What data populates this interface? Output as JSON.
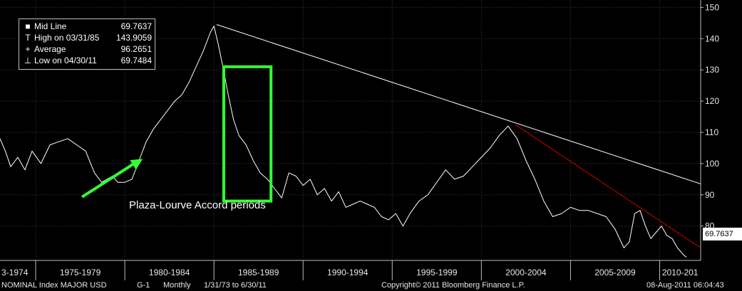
{
  "legend": {
    "rows": [
      {
        "symbol": "■",
        "label": "Mid Line",
        "value": "69.7637"
      },
      {
        "symbol": "T",
        "label": "High on 03/31/85",
        "value": "143.9059"
      },
      {
        "symbol": "+",
        "label": "Average",
        "value": "96.2651"
      },
      {
        "symbol": "⊥",
        "label": "Low on 04/30/11",
        "value": "69.7484"
      }
    ]
  },
  "annotation_text": "Plaza-Lourve Accord periods",
  "last_price_label": "69.7637",
  "footer": {
    "index": "NOMINAL Index  MAJOR USD",
    "chart_id": "G-1",
    "frequency": "Monthly",
    "range": "1/31/73 to 6/30/11",
    "copyright": "Copyright© 2011 Bloomberg Finance L.P.",
    "timestamp": "08-Aug-2011 06:04:43"
  },
  "colors": {
    "background": "#000000",
    "series": "#ffffff",
    "trend_white": "#ffffff",
    "trend_red": "#cc0000",
    "highlight_box": "#33ff33",
    "arrow": "#33ff33",
    "grid": "#3a3a3a"
  },
  "chart_data": {
    "type": "line",
    "title": "",
    "xlabel": "",
    "ylabel": "",
    "ylim": [
      69,
      151
    ],
    "xlim": [
      1973.0,
      2012.3
    ],
    "y_ticks": [
      80,
      90,
      100,
      110,
      120,
      130,
      140,
      150
    ],
    "x_period_labels": [
      "3-1974",
      "1975-1979",
      "1980-1984",
      "1985-1989",
      "1990-1994",
      "1995-1999",
      "2000-2004",
      "2005-2009",
      "2010-201"
    ],
    "x_period_dividers": [
      1975.0,
      1980.0,
      1985.0,
      1990.0,
      1995.0,
      2000.0,
      2005.0,
      2010.0
    ],
    "grid": true,
    "legend_position": "top-left",
    "series": [
      {
        "name": "Mid Line",
        "x": [
          1973.0,
          1973.3,
          1973.6,
          1974.0,
          1974.4,
          1974.8,
          1975.3,
          1975.8,
          1976.3,
          1976.8,
          1977.3,
          1977.8,
          1978.3,
          1978.7,
          1979.0,
          1979.3,
          1979.6,
          1980.0,
          1980.4,
          1980.8,
          1981.2,
          1981.6,
          1982.0,
          1982.4,
          1982.8,
          1983.2,
          1983.6,
          1984.0,
          1984.4,
          1984.8,
          1985.0,
          1985.25,
          1985.5,
          1985.8,
          1986.1,
          1986.4,
          1986.8,
          1987.2,
          1987.6,
          1988.0,
          1988.4,
          1988.8,
          1989.2,
          1989.6,
          1990.0,
          1990.4,
          1990.8,
          1991.2,
          1991.6,
          1992.0,
          1992.4,
          1992.8,
          1993.2,
          1993.6,
          1994.0,
          1994.4,
          1994.8,
          1995.2,
          1995.6,
          1996.0,
          1996.5,
          1997.0,
          1997.5,
          1998.0,
          1998.5,
          1999.0,
          1999.5,
          2000.0,
          2000.5,
          2001.0,
          2001.5,
          2002.0,
          2002.5,
          2003.0,
          2003.5,
          2004.0,
          2004.5,
          2005.0,
          2005.5,
          2006.0,
          2006.5,
          2007.0,
          2007.5,
          2008.0,
          2008.3,
          2008.6,
          2008.9,
          2009.2,
          2009.5,
          2009.8,
          2010.1,
          2010.4,
          2010.7,
          2011.0,
          2011.3,
          2011.5
        ],
        "values": [
          108,
          104,
          99,
          102,
          98,
          104,
          100,
          106,
          107,
          108,
          106,
          104,
          97,
          94,
          95,
          96,
          94,
          94,
          95,
          101,
          107,
          111,
          114,
          117,
          120,
          122,
          126,
          131,
          136,
          142,
          144,
          138,
          131,
          122,
          114,
          109,
          106,
          101,
          97,
          95,
          92,
          89,
          97,
          96,
          93,
          95,
          90,
          92,
          88,
          91,
          86,
          87,
          88,
          87,
          86,
          83,
          82,
          84,
          80,
          84,
          88,
          90,
          94,
          98,
          95,
          96,
          99,
          102,
          105,
          109,
          112,
          108,
          101,
          95,
          88,
          83,
          84,
          86,
          85,
          85,
          84,
          83,
          79,
          73,
          75,
          84,
          85,
          80,
          76,
          78,
          80,
          77,
          76,
          73,
          71,
          70
        ]
      }
    ],
    "trend_lines": [
      {
        "name": "",
        "color": "#ffffff",
        "x": [
          1985.15,
          2012.3
        ],
        "values": [
          144.5,
          93.5
        ]
      },
      {
        "name": "",
        "color": "#cc0000",
        "x": [
          2001.9,
          2012.3
        ],
        "values": [
          112.5,
          73.0
        ]
      }
    ],
    "highlight_box": {
      "x": [
        1985.55,
        1988.2
      ],
      "values": [
        131,
        88
      ]
    },
    "arrow": {
      "x": [
        1977.6,
        1981.0
      ],
      "values": [
        89.3,
        101.5
      ]
    }
  }
}
